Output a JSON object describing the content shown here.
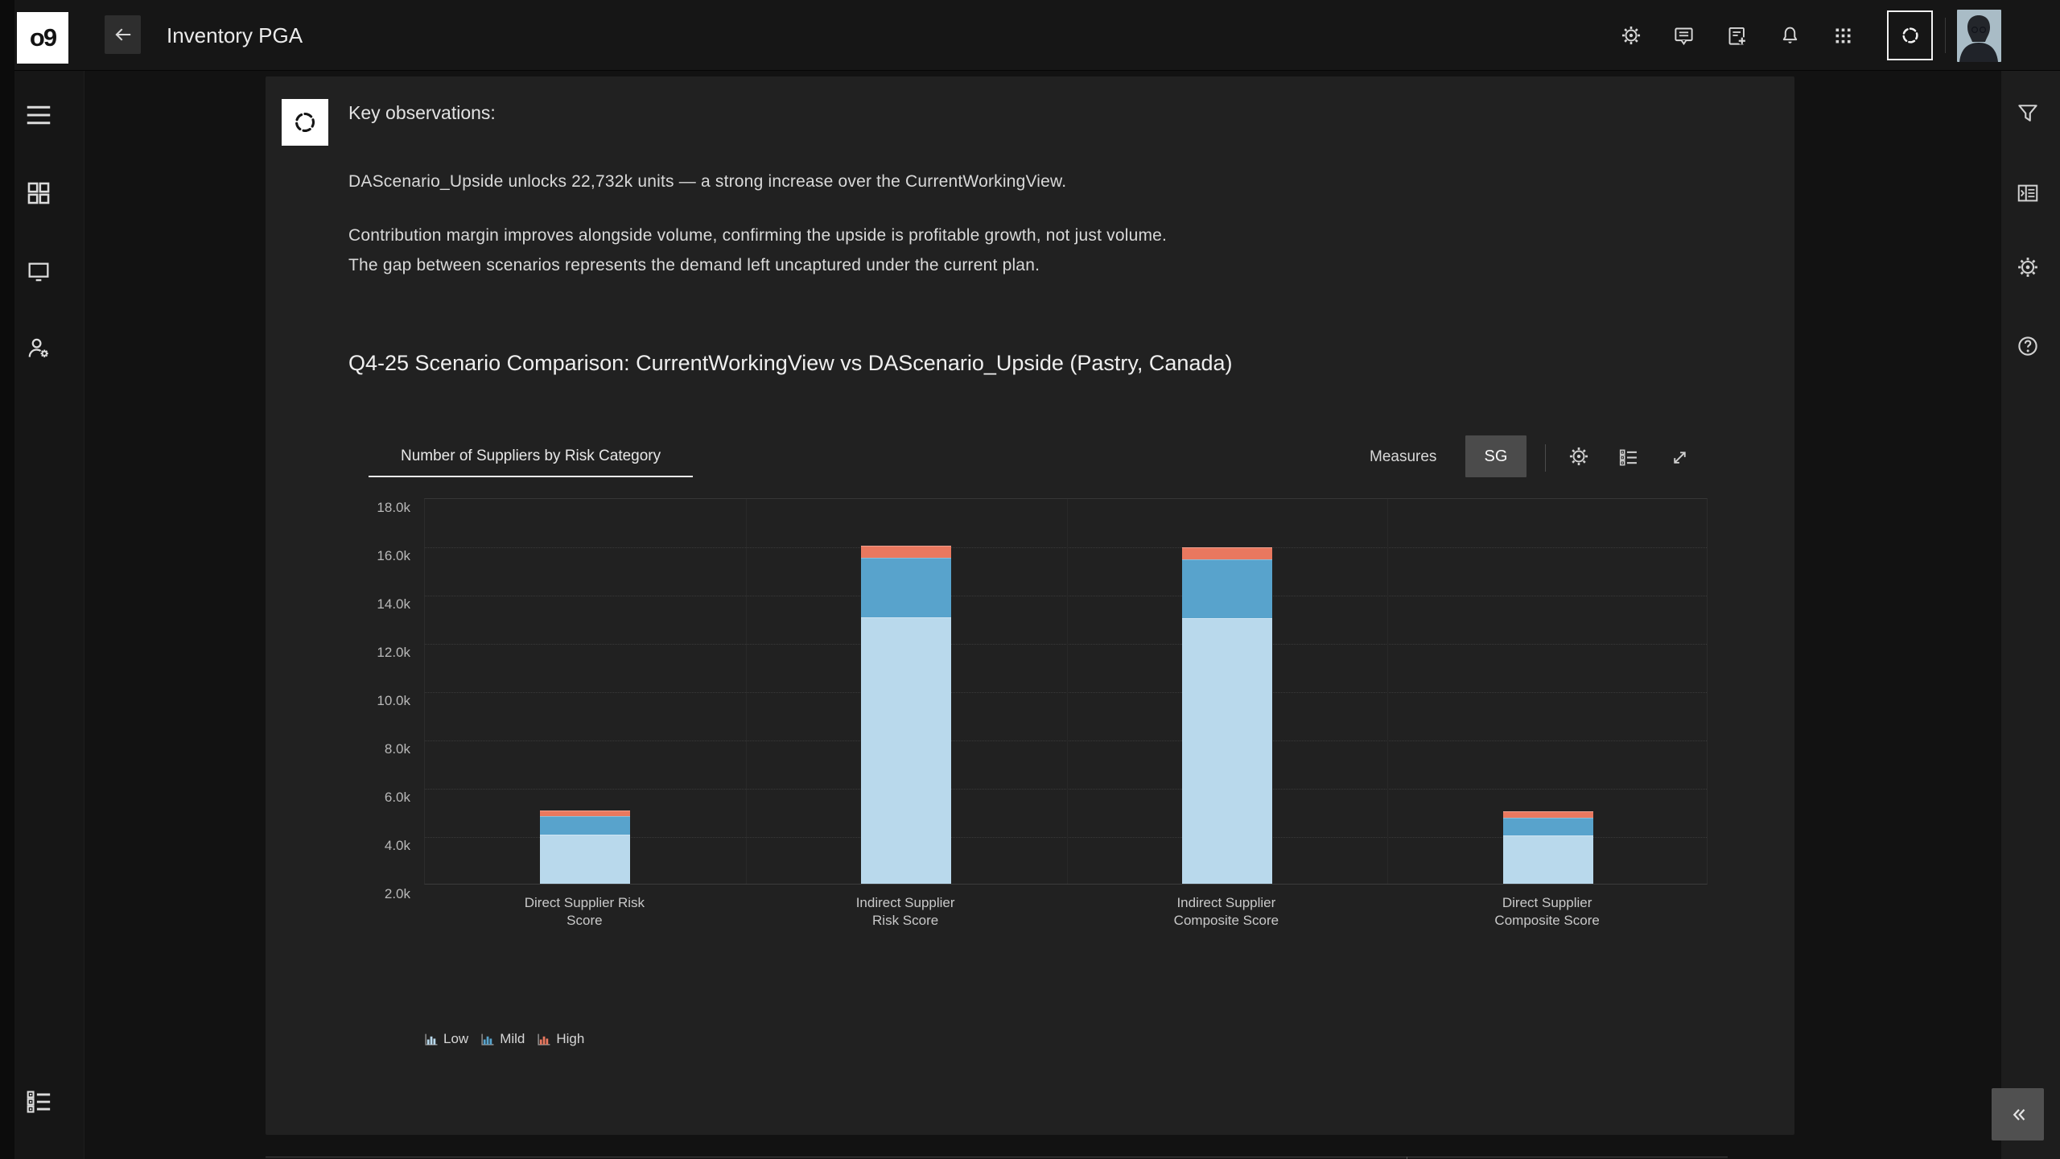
{
  "header": {
    "logo": "o9",
    "title": "Inventory PGA",
    "icons": [
      "back-arrow",
      "settings",
      "comments",
      "add-note",
      "notifications",
      "app-launcher",
      "ai-assistant",
      "user-avatar"
    ]
  },
  "left_sidebar": {
    "icons": [
      "menu",
      "workspaces-grid",
      "screens-monitor",
      "user-admin",
      "item-detail-list"
    ]
  },
  "right_sidebar": {
    "icons": [
      "filter-funnel",
      "data-side-panel",
      "settings-gear",
      "help-circle"
    ]
  },
  "observations": {
    "title": "Key observations:",
    "lines": [
      "DAScenario_Upside unlocks 22,732k units — a strong increase over the CurrentWorkingView.",
      "Contribution margin improves alongside volume, confirming the upside is profitable growth, not just volume.",
      "The gap between scenarios represents the demand left uncaptured under the current plan."
    ],
    "heading": "Q4-25 Scenario Comparison: CurrentWorkingView vs DAScenario_Upside (Pastry, Canada)"
  },
  "widget": {
    "tab_label": "Number of Suppliers by Risk Category",
    "measures_label": "Measures",
    "measures_badge": "SG",
    "toolbar_icons": [
      "chart-settings-gear",
      "legend-list",
      "expand-diagonal"
    ],
    "collapse_icon": "collapse-double-chevron-left"
  },
  "chart_data": {
    "type": "bar",
    "stacked": true,
    "title": "Number of Suppliers by Risk Category",
    "categories": [
      "Direct Supplier Risk Score",
      "Indirect Supplier Risk Score",
      "Indirect Supplier Composite Score",
      "Direct Supplier Composite Score"
    ],
    "category_lines": [
      [
        "Direct Supplier Risk",
        "Score"
      ],
      [
        "Indirect Supplier",
        "Risk Score"
      ],
      [
        "Indirect Supplier",
        "Composite Score"
      ],
      [
        "Direct Supplier",
        "Composite Score"
      ]
    ],
    "series": [
      {
        "name": "Low",
        "color": "#b9d9ec",
        "values": [
          4050,
          13050,
          13000,
          4000
        ]
      },
      {
        "name": "Mild",
        "color": "#58a3cc",
        "values": [
          750,
          2450,
          2450,
          750
        ]
      },
      {
        "name": "High",
        "color": "#e9785f",
        "values": [
          250,
          500,
          500,
          250
        ]
      }
    ],
    "xlabel": "",
    "ylabel": "",
    "ylim": [
      2000,
      18000
    ],
    "yticks": [
      "18.0k",
      "16.0k",
      "14.0k",
      "12.0k",
      "10.0k",
      "8.0k",
      "6.0k",
      "4.0k",
      "2.0k"
    ],
    "grid": true,
    "legend_position": "bottom-left"
  },
  "colors": {
    "card_bg": "#212121",
    "page_bg": "#121212",
    "rail_bg": "#161616",
    "sg_badge_bg": "#4b4b4b",
    "low": "#b9d9ec",
    "mild": "#58a3cc",
    "high": "#e9785f"
  }
}
